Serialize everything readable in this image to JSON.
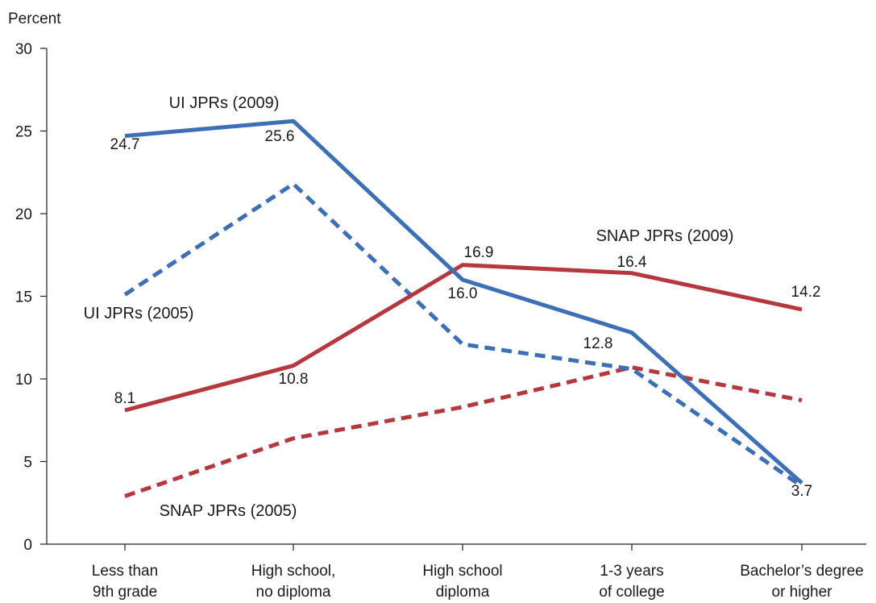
{
  "chart_data": {
    "type": "line",
    "title": "",
    "ylabel": "Percent",
    "xlabel": "",
    "ylim": [
      0,
      30
    ],
    "yticks": [
      0,
      5,
      10,
      15,
      20,
      25,
      30
    ],
    "categories": [
      [
        "Less than",
        "9th grade"
      ],
      [
        "High school,",
        "no diploma"
      ],
      [
        "High school",
        "diploma"
      ],
      [
        "1-3 years",
        "of college"
      ],
      [
        "Bachelor’s degree",
        "or higher"
      ]
    ],
    "grid": false,
    "legend": "none (series labeled directly)",
    "series": [
      {
        "name": "UI JPRs (2009)",
        "color": "#3d6fb6",
        "dash": "solid",
        "values": [
          24.7,
          25.6,
          16.0,
          12.8,
          3.7
        ],
        "data_labels": [
          "24.7",
          "25.6",
          "16.0",
          "12.8",
          "3.7"
        ]
      },
      {
        "name": "UI JPRs (2005)",
        "color": "#3d6fb6",
        "dash": "dashed",
        "values": [
          15.1,
          21.8,
          12.1,
          10.6,
          3.5
        ],
        "data_labels": [
          "",
          "",
          "",
          "",
          ""
        ]
      },
      {
        "name": "SNAP JPRs (2009)",
        "color": "#b5383e",
        "dash": "solid",
        "values": [
          8.1,
          10.8,
          16.9,
          16.4,
          14.2
        ],
        "data_labels": [
          "8.1",
          "10.8",
          "16.9",
          "16.4",
          "14.2"
        ]
      },
      {
        "name": "SNAP JPRs (2005)",
        "color": "#b5383e",
        "dash": "dashed",
        "values": [
          2.9,
          6.4,
          8.3,
          10.7,
          8.7
        ],
        "data_labels": [
          "",
          "",
          "",
          "",
          ""
        ]
      }
    ]
  }
}
